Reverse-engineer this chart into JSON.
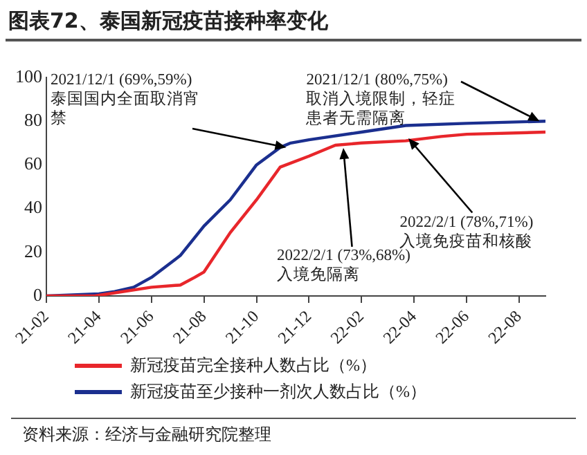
{
  "chart_data": {
    "type": "line",
    "title": "图表72、泰国新冠疫苗接种率变化",
    "xlim": [
      "2021-02-01",
      "2022-09-01"
    ],
    "xticks": [
      {
        "value": "2021-02-01",
        "label": "21-02"
      },
      {
        "value": "2021-04-01",
        "label": "21-04"
      },
      {
        "value": "2021-06-01",
        "label": "21-06"
      },
      {
        "value": "2021-08-01",
        "label": "21-08"
      },
      {
        "value": "2021-10-01",
        "label": "21-10"
      },
      {
        "value": "2021-12-01",
        "label": "21-12"
      },
      {
        "value": "2022-02-01",
        "label": "22-02"
      },
      {
        "value": "2022-04-01",
        "label": "22-04"
      },
      {
        "value": "2022-06-01",
        "label": "22-06"
      },
      {
        "value": "2022-08-01",
        "label": "22-08"
      }
    ],
    "ylim": [
      0,
      100
    ],
    "yticks": [
      0,
      20,
      40,
      60,
      80,
      100
    ],
    "grid": false,
    "legend": "bottom",
    "marker": "none",
    "line_style": "solid",
    "series": [
      {
        "name": "新冠疫苗完全接种人数占比（%）",
        "color": "#e8262b",
        "x": [
          "2021-02-01",
          "2021-03-27",
          "2021-06-01",
          "2021-07-04",
          "2021-07-21",
          "2021-08-01",
          "2021-09-01",
          "2021-10-01",
          "2021-10-29",
          "2021-12-01",
          "2022-01-01",
          "2022-02-01",
          "2022-03-22",
          "2022-05-02",
          "2022-06-01",
          "2022-09-01"
        ],
        "values": [
          0,
          0,
          4,
          5,
          8.5,
          11,
          29,
          44,
          59,
          64,
          69,
          70,
          71,
          73,
          74,
          75
        ]
      },
      {
        "name": "新冠疫苗至少接种一剂次人数占比（%）",
        "color": "#1b2f8f",
        "x": [
          "2021-02-01",
          "2021-04-01",
          "2021-04-19",
          "2021-05-11",
          "2021-06-01",
          "2021-07-04",
          "2021-08-01",
          "2021-09-01",
          "2021-10-01",
          "2021-10-29",
          "2021-11-10",
          "2021-12-01",
          "2022-02-01",
          "2022-03-22",
          "2022-06-01",
          "2022-09-01"
        ],
        "values": [
          0,
          1,
          2,
          4,
          8.5,
          18.5,
          32,
          44,
          60,
          68,
          70,
          71.5,
          75,
          78,
          79,
          80
        ]
      }
    ],
    "annotations": [
      {
        "text": "2021/12/1 (69%,59%)泰国国内全面取消宵禁",
        "x": "2021-11-05",
        "y": 68
      },
      {
        "text": "2021/12/1 (80%,75%)取消入境限制，轻症患者无需隔离",
        "x": "2022-08-25",
        "y": 80
      },
      {
        "text": "2022/2/1 (78%,71%)入境免疫苗和核酸",
        "x": "2022-03-25",
        "y": 72
      },
      {
        "text": "2022/2/1 (73%,68%)入境免隔离",
        "x": "2022-01-10",
        "y": 68
      },
      "资料来源：经济与金融研究院整理"
    ]
  }
}
